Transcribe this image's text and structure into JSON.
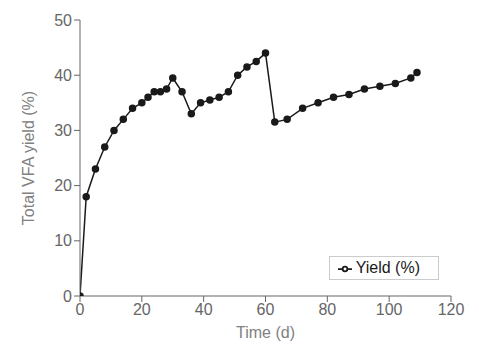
{
  "chart_data": {
    "type": "line",
    "x": [
      0,
      2,
      5,
      8,
      11,
      14,
      17,
      20,
      22,
      24,
      26,
      28,
      30,
      33,
      36,
      39,
      42,
      45,
      48,
      51,
      54,
      57,
      60,
      63,
      67,
      72,
      77,
      82,
      87,
      92,
      97,
      102,
      107,
      109
    ],
    "series": [
      {
        "name": "Yield (%)",
        "color": "#1a1a1a",
        "marker": "circle",
        "values": [
          0,
          18,
          23,
          27,
          30,
          32,
          34,
          35,
          36,
          37,
          37,
          37.5,
          39.5,
          37,
          33,
          35,
          35.5,
          36,
          37,
          40,
          41.5,
          42.5,
          44,
          31.5,
          32,
          34,
          35,
          36,
          36.5,
          37.5,
          38,
          38.5,
          39.5,
          40.5
        ]
      }
    ],
    "xlabel": "Time (d)",
    "ylabel": "Total VFA yield (%)",
    "xlim": [
      0,
      120
    ],
    "ylim": [
      0,
      50
    ],
    "xticks": [
      0,
      20,
      40,
      60,
      80,
      100,
      120
    ],
    "yticks": [
      0,
      10,
      20,
      30,
      40,
      50
    ],
    "grid": false,
    "legend": "lower right"
  }
}
